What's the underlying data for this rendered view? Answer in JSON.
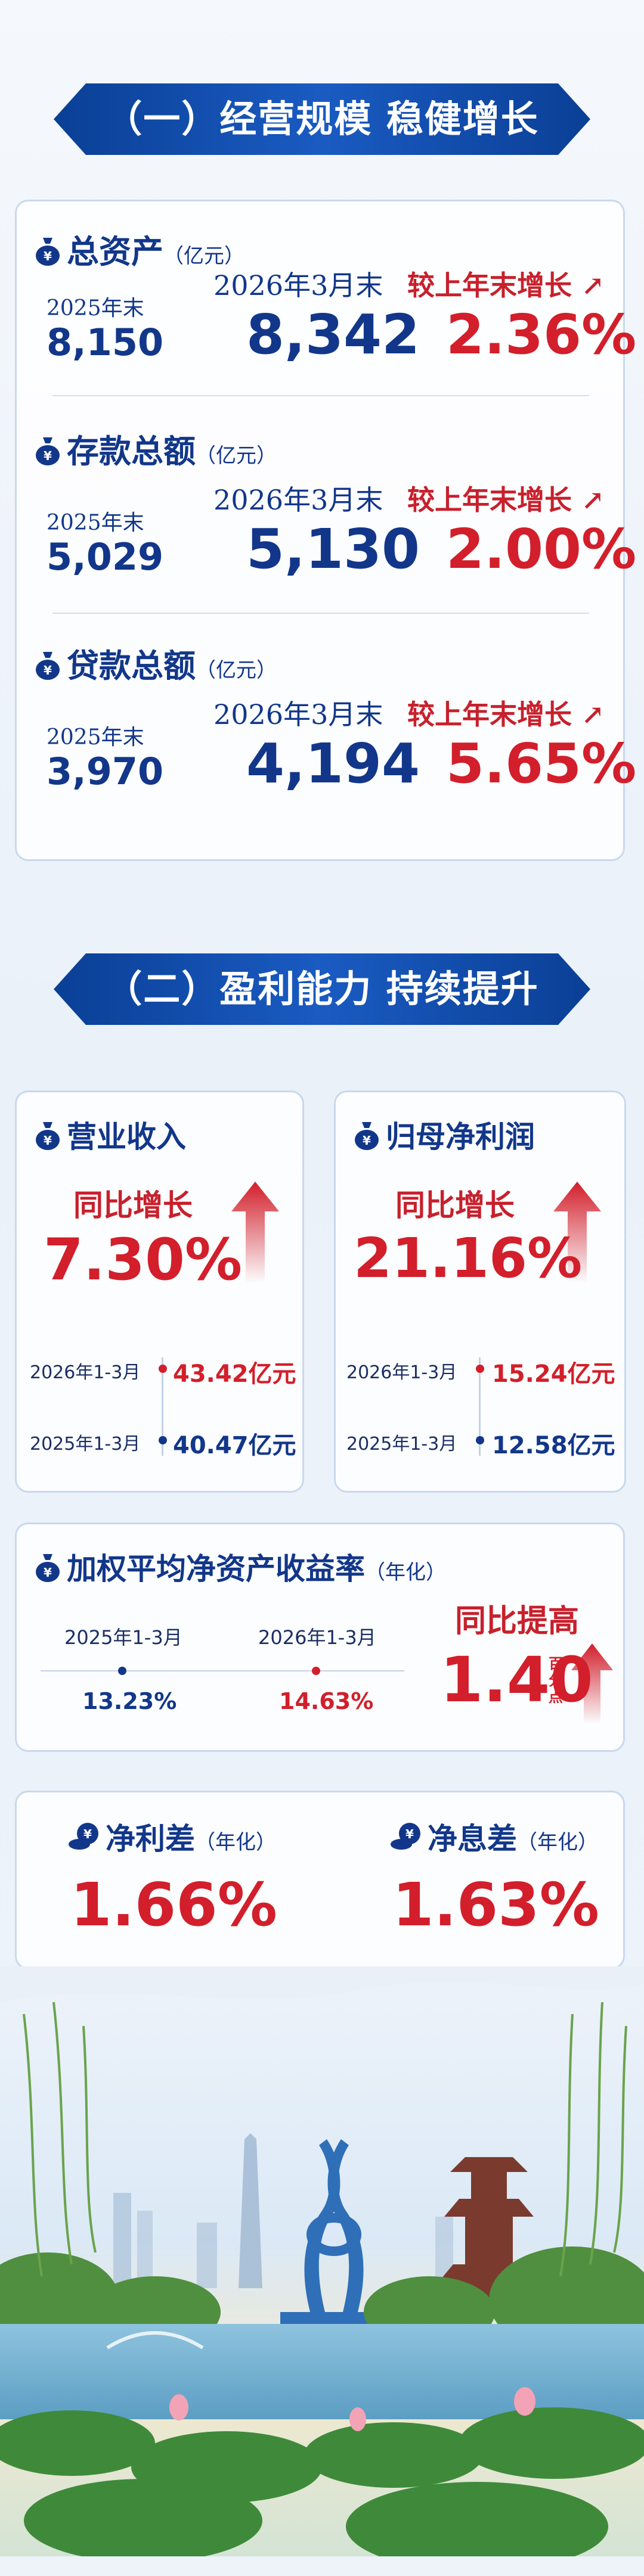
{
  "section1": {
    "banner": "（一）经营规模 稳健增长",
    "metrics": [
      {
        "title": "总资产",
        "unit": "（亿元）",
        "prev_label": "2025年末",
        "prev_value": "8,150",
        "cur_label": "2026年3月末",
        "cur_value": "8,342",
        "growth_label": "较上年末增长",
        "growth_value": "2.36%"
      },
      {
        "title": "存款总额",
        "unit": "（亿元）",
        "prev_label": "2025年末",
        "prev_value": "5,029",
        "cur_label": "2026年3月末",
        "cur_value": "5,130",
        "growth_label": "较上年末增长",
        "growth_value": "2.00%"
      },
      {
        "title": "贷款总额",
        "unit": "（亿元）",
        "prev_label": "2025年末",
        "prev_value": "3,970",
        "cur_label": "2026年3月末",
        "cur_value": "4,194",
        "growth_label": "较上年末增长",
        "growth_value": "5.65%"
      }
    ]
  },
  "section2": {
    "banner": "（二）盈利能力 持续提升",
    "revenue": {
      "title": "营业收入",
      "yoy_label": "同比增长",
      "yoy_value": "7.30%",
      "row1_date": "2026年1-3月",
      "row1_value": "43.42亿元",
      "row2_date": "2025年1-3月",
      "row2_value": "40.47亿元"
    },
    "profit": {
      "title": "归母净利润",
      "yoy_label": "同比增长",
      "yoy_value": "21.16%",
      "row1_date": "2026年1-3月",
      "row1_value": "15.24亿元",
      "row2_date": "2025年1-3月",
      "row2_value": "12.58亿元"
    },
    "roe": {
      "title": "加权平均净资产收益率",
      "unit": "（年化）",
      "prev_label": "2025年1-3月",
      "prev_value": "13.23%",
      "cur_label": "2026年1-3月",
      "cur_value": "14.63%",
      "change_label": "同比提高",
      "change_value": "1.40",
      "change_unit": "百分点"
    },
    "margins": [
      {
        "title": "净利差",
        "unit": "（年化）",
        "value": "1.66%"
      },
      {
        "title": "净息差",
        "unit": "（年化）",
        "value": "1.63%"
      }
    ]
  },
  "colors": {
    "navy": "#12378a",
    "red": "#d21f2b",
    "banner": "#1a5bc2"
  }
}
